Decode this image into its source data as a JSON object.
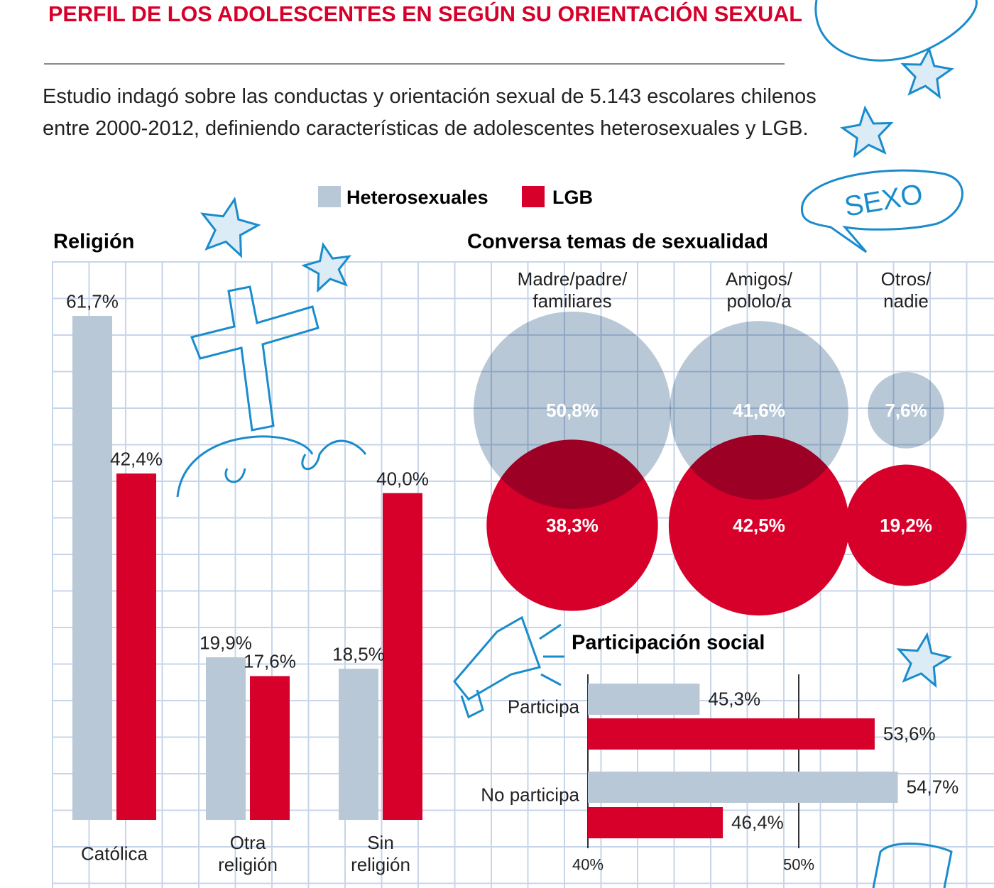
{
  "title": "PERFIL DE LOS ADOLESCENTES EN SEGÚN SU ORIENTACIÓN SEXUAL",
  "subtitle": "Estudio indagó sobre las conductas y orientación sexual de 5.143 escolares chilenos entre 2000-2012, definiendo características de adolescentes heterosexuales y LGB.",
  "doodle_text": "SEXO",
  "chart_data": [
    {
      "type": "bar",
      "title": "Religión",
      "categories": [
        "Católica",
        "Otra\nreligión",
        "Sin\nreligión"
      ],
      "series": [
        {
          "name": "Heterosexuales",
          "color": "#b9c8d6",
          "values": [
            61.7,
            19.9,
            18.5
          ],
          "value_labels": [
            "61,7%",
            "19,9%",
            "18,5%"
          ]
        },
        {
          "name": "LGB",
          "color": "#d7002a",
          "values": [
            42.4,
            17.6,
            40.0
          ],
          "value_labels": [
            "42,4%",
            "17,6%",
            "40,0%"
          ]
        }
      ]
    },
    {
      "type": "bubble",
      "title": "Conversa temas de sexualidad",
      "categories": [
        "Madre/padre/\nfamiliares",
        "Amigos/\npololo/a",
        "Otros/\nnadie"
      ],
      "series": [
        {
          "color": "#b9c8d6",
          "values": [
            50.8,
            41.6,
            7.6
          ],
          "value_labels": [
            "50,8%",
            "41,6%",
            "7,6%"
          ]
        },
        {
          "color": "#d7002a",
          "values": [
            38.3,
            42.5,
            19.2
          ],
          "value_labels": [
            "38,3%",
            "42,5%",
            "19,2%"
          ]
        }
      ]
    },
    {
      "type": "barh",
      "title": "Participación social",
      "categories": [
        "Participa",
        "No participa"
      ],
      "xlim": [
        40,
        55
      ],
      "xticks": [
        {
          "value": 40,
          "label": "40%"
        },
        {
          "value": 50,
          "label": "50%"
        }
      ],
      "series": [
        {
          "color": "#b9c8d6",
          "values": [
            45.3,
            54.7
          ],
          "value_labels": [
            "45,3%",
            "54,7%"
          ]
        },
        {
          "color": "#d7002a",
          "values": [
            53.6,
            46.4
          ],
          "value_labels": [
            "53,6%",
            "46,4%"
          ]
        }
      ]
    }
  ]
}
